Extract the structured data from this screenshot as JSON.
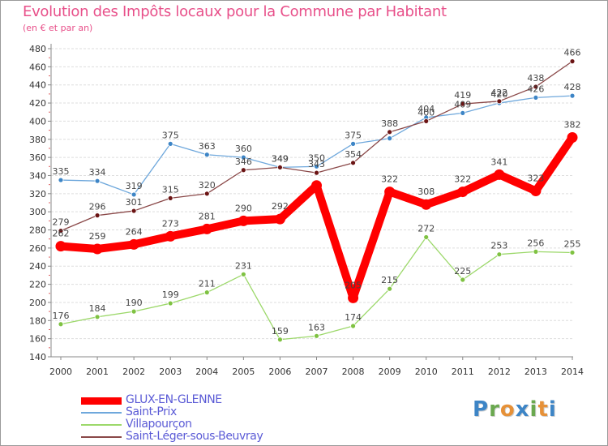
{
  "header": {
    "title": "Evolution des Impôts locaux pour la Commune par Habitant",
    "subtitle": "(en € et par an)"
  },
  "chart_data": {
    "type": "line",
    "title": "Evolution des Impôts locaux pour la Commune par Habitant",
    "subtitle": "(en € et par an)",
    "x": [
      "2000",
      "2001",
      "2002",
      "2003",
      "2004",
      "2005",
      "2006",
      "2007",
      "2008",
      "2009",
      "2010",
      "2011",
      "2012",
      "2013",
      "2014"
    ],
    "yticks": [
      140,
      160,
      180,
      200,
      220,
      240,
      260,
      280,
      300,
      320,
      340,
      360,
      380,
      400,
      420,
      440,
      460,
      480
    ],
    "ylim": [
      140,
      480
    ],
    "grid": true,
    "legend_position": "bottom-left",
    "series": [
      {
        "name": "GLUX-EN-GLENNE",
        "color": "#ff0000",
        "dot": "#ff0000",
        "values": [
          262,
          259,
          264,
          273,
          281,
          290,
          292,
          329,
          205,
          322,
          308,
          322,
          341,
          323,
          382
        ],
        "labels": [
          "262",
          "259",
          "264",
          "273",
          "281",
          "290",
          "292",
          "",
          "205",
          "322",
          "308",
          "322",
          "341",
          "323",
          "382"
        ]
      },
      {
        "name": "Saint-Prix",
        "color": "#6fa8dc",
        "dot": "#3d85c6",
        "values": [
          335,
          334,
          319,
          375,
          363,
          360,
          349,
          350,
          375,
          381,
          404,
          409,
          420,
          426,
          428
        ],
        "labels": [
          "335",
          "334",
          "319",
          "375",
          "363",
          "360",
          "349",
          "350",
          "375",
          "",
          "404",
          "409",
          "420",
          "426",
          "428"
        ]
      },
      {
        "name": "Villapourçon",
        "color": "#9cd86a",
        "dot": "#7fc242",
        "values": [
          176,
          184,
          190,
          199,
          211,
          231,
          159,
          163,
          174,
          215,
          272,
          225,
          253,
          256,
          255
        ],
        "labels": [
          "176",
          "184",
          "190",
          "199",
          "211",
          "231",
          "159",
          "163",
          "174",
          "215",
          "272",
          "225",
          "253",
          "256",
          "255"
        ]
      },
      {
        "name": "Saint-Léger-sous-Beuvray",
        "color": "#8a4848",
        "dot": "#6b1414",
        "values": [
          279,
          296,
          301,
          315,
          320,
          346,
          349,
          343,
          354,
          388,
          400,
          419,
          422,
          438,
          466
        ],
        "labels": [
          "279",
          "296",
          "301",
          "315",
          "320",
          "346",
          "349",
          "343",
          "354",
          "388",
          "400",
          "419",
          "422",
          "438",
          "466"
        ]
      }
    ]
  },
  "legend": {
    "items": [
      "GLUX-EN-GLENNE",
      "Saint-Prix",
      "Villapourçon",
      "Saint-Léger-sous-Beuvray"
    ]
  },
  "brand": {
    "name": "Proxiti",
    "letters": [
      "P",
      "r",
      "o",
      "x",
      "i",
      "t",
      "i"
    ],
    "letter_colors": [
      "#3d85c6",
      "#6aa84f",
      "#e69138",
      "#3d85c6",
      "#6aa84f",
      "#e69138",
      "#3d85c6"
    ]
  }
}
